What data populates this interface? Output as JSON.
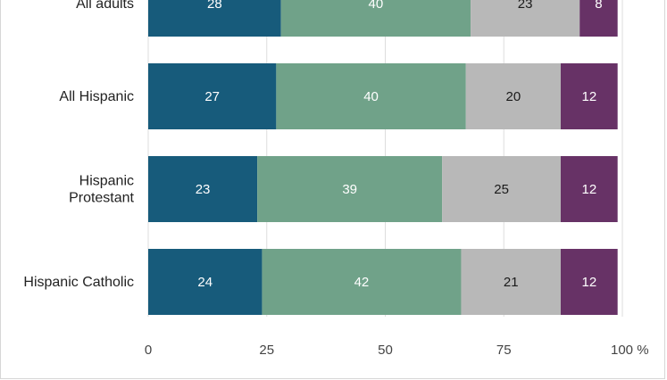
{
  "chart_data": {
    "type": "bar",
    "orientation": "horizontal",
    "stacked": true,
    "categories": [
      "All adults",
      "All Hispanic",
      "Hispanic Protestant",
      "Hispanic Catholic"
    ],
    "category_lines": [
      [
        "All adults"
      ],
      [
        "All Hispanic"
      ],
      [
        "Hispanic",
        "Protestant"
      ],
      [
        "Hispanic Catholic"
      ]
    ],
    "series": [
      {
        "values": [
          28,
          27,
          23,
          24
        ],
        "color": "#175b7b",
        "label_color": "#ffffff"
      },
      {
        "values": [
          40,
          40,
          39,
          42
        ],
        "color": "#70a289",
        "label_color": "#ffffff"
      },
      {
        "values": [
          23,
          20,
          25,
          21
        ],
        "color": "#b8b8b8",
        "label_color": "#1a1a1a"
      },
      {
        "values": [
          8,
          12,
          12,
          12
        ],
        "color": "#673266",
        "label_color": "#ffffff"
      }
    ],
    "xlim": [
      0,
      100
    ],
    "xticks": [
      0,
      25,
      50,
      75,
      100
    ],
    "xtick_labels": [
      "0",
      "25",
      "50",
      "75",
      "100 %"
    ],
    "grid": true
  }
}
